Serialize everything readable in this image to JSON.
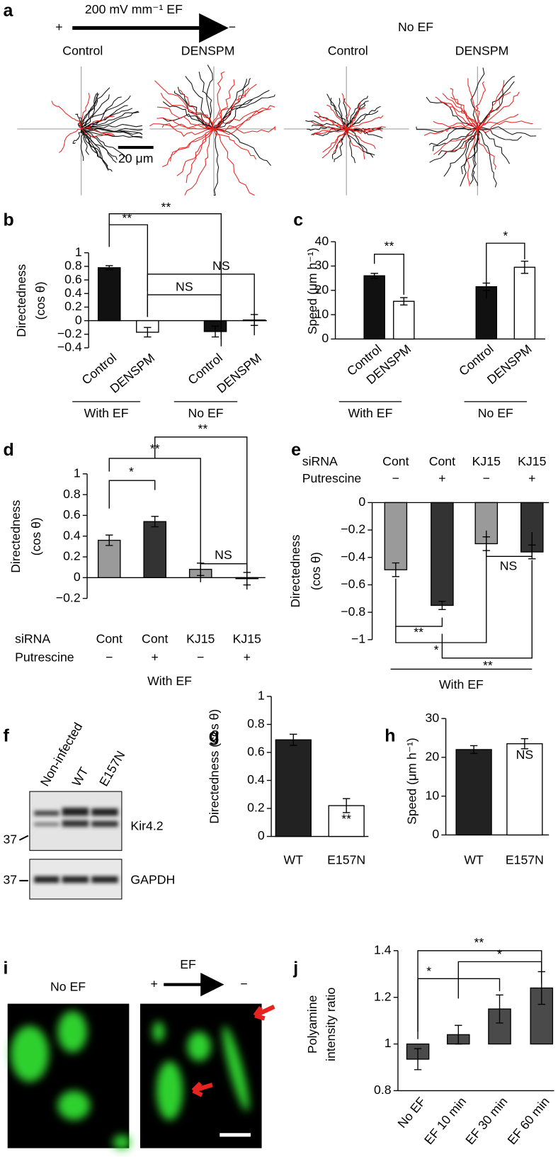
{
  "figures": {
    "a": {
      "label": "a",
      "ef_label": "200 mV mm⁻¹ EF",
      "plus": "+",
      "minus": "−",
      "no_ef": "No EF",
      "groups": [
        "Control",
        "DENSPM",
        "Control",
        "DENSPM"
      ],
      "scale": "20 μm"
    },
    "f": {
      "label": "f",
      "lanes": [
        "Non-infected",
        "WT",
        "E157N"
      ],
      "bands": [
        "Kir4.2",
        "GAPDH"
      ],
      "markers": [
        "37",
        "37"
      ]
    },
    "i": {
      "label": "i",
      "left": "No EF",
      "right": "EF",
      "plus": "+",
      "minus": "−"
    }
  },
  "chart_data": [
    {
      "type": "bar",
      "panel": "b",
      "ylabel": [
        "Directedness",
        "(cos θ)"
      ],
      "categories": [
        "Control",
        "DENSPM",
        "Control",
        "DENSPM"
      ],
      "values": [
        0.78,
        -0.17,
        -0.16,
        0.01
      ],
      "errors": [
        0.03,
        0.07,
        0.08,
        0.08
      ],
      "colors": [
        "#111111",
        "#ffffff",
        "#111111",
        "#ffffff"
      ],
      "groups": [
        "With EF",
        "No EF"
      ],
      "ylim": [
        -0.4,
        1
      ],
      "yticks": [
        {
          "value": -0.4,
          "label": "−0.4"
        },
        {
          "value": -0.2,
          "label": "−0.2"
        },
        0,
        0.2,
        0.4,
        0.6,
        0.8,
        1
      ],
      "annotations": [
        "**",
        "**",
        "NS",
        "NS"
      ]
    },
    {
      "type": "bar",
      "panel": "c",
      "ylabel": [
        "Speed (μm h⁻¹)"
      ],
      "categories": [
        "Control",
        "DENSPM",
        "Control",
        "DENSPM"
      ],
      "values": [
        26,
        15.5,
        21.5,
        29.5
      ],
      "errors": [
        1,
        1.5,
        1.5,
        2.5
      ],
      "colors": [
        "#111111",
        "#ffffff",
        "#111111",
        "#ffffff"
      ],
      "groups": [
        "With EF",
        "No EF"
      ],
      "ylim": [
        0,
        40
      ],
      "yticks": [
        0,
        10,
        20,
        30,
        40
      ],
      "annotations": [
        "**",
        "*"
      ]
    },
    {
      "type": "bar",
      "panel": "d",
      "ylabel": [
        "Directedness",
        "(cos θ)"
      ],
      "category_label": "siRNA",
      "categories": [
        "Cont",
        "Cont",
        "KJ15",
        "KJ15"
      ],
      "treatment": {
        "label": "Putrescine",
        "values": [
          "−",
          "+",
          "−",
          "+"
        ]
      },
      "values": [
        0.36,
        0.54,
        0.08,
        -0.01
      ],
      "errors": [
        0.05,
        0.05,
        0.06,
        0.06
      ],
      "colors": [
        "#9a9a9a",
        "#333333",
        "#9a9a9a",
        "#333333"
      ],
      "groups": [
        "With EF"
      ],
      "ylim": [
        -0.2,
        1
      ],
      "yticks": [
        {
          "value": -0.2,
          "label": "−0.2"
        },
        0,
        0.2,
        0.4,
        0.6,
        0.8,
        1
      ],
      "annotations": [
        "*",
        "**",
        "**",
        "NS"
      ]
    },
    {
      "type": "bar",
      "panel": "e",
      "ylabel": [
        "Directedness",
        "(cos θ)"
      ],
      "category_label": "siRNA",
      "categories": [
        "Cont",
        "Cont",
        "KJ15",
        "KJ15"
      ],
      "treatment": {
        "label": "Putrescine",
        "values": [
          "−",
          "+",
          "−",
          "+"
        ]
      },
      "values": [
        -0.49,
        -0.75,
        -0.3,
        -0.36
      ],
      "errors": [
        0.05,
        0.03,
        0.05,
        0.05
      ],
      "colors": [
        "#9a9a9a",
        "#333333",
        "#9a9a9a",
        "#333333"
      ],
      "groups": [
        "With EF"
      ],
      "ylim": [
        -1,
        0
      ],
      "yticks": [
        0,
        {
          "value": -0.2,
          "label": "−0.2"
        },
        {
          "value": -0.4,
          "label": "−0.4"
        },
        {
          "value": -0.6,
          "label": "−0.6"
        },
        {
          "value": -0.8,
          "label": "−0.8"
        },
        {
          "value": -1,
          "label": "−1"
        }
      ],
      "annotations": [
        "NS",
        "**",
        "*",
        "**"
      ]
    },
    {
      "type": "bar",
      "panel": "g",
      "ylabel": [
        "Directedness (cos θ)"
      ],
      "categories": [
        "WT",
        "E157N"
      ],
      "values": [
        0.69,
        0.22
      ],
      "errors": [
        0.04,
        0.05
      ],
      "colors": [
        "#222222",
        "#ffffff"
      ],
      "ylim": [
        0,
        1
      ],
      "yticks": [
        0,
        0.2,
        0.4,
        0.6,
        0.8,
        1
      ],
      "annotations": [
        "**"
      ]
    },
    {
      "type": "bar",
      "panel": "h",
      "ylabel": [
        "Speed (μm h⁻¹)"
      ],
      "categories": [
        "WT",
        "E157N"
      ],
      "values": [
        22,
        23.5
      ],
      "errors": [
        1,
        1.3
      ],
      "colors": [
        "#222222",
        "#ffffff"
      ],
      "ylim": [
        0,
        30
      ],
      "yticks": [
        0,
        10,
        20,
        30
      ],
      "annotations": [
        "NS"
      ]
    },
    {
      "type": "bar",
      "panel": "j",
      "ylabel": [
        "Polyamine",
        "intensity ratio"
      ],
      "categories": [
        "No EF",
        "EF 10 min",
        "EF 30 min",
        "EF 60 min"
      ],
      "values": [
        0.935,
        1.04,
        1.15,
        1.24
      ],
      "errors": [
        0.045,
        0.04,
        0.06,
        0.07
      ],
      "colors": [
        "#4a4a4a",
        "#4a4a4a",
        "#4a4a4a",
        "#4a4a4a"
      ],
      "baseline": 1,
      "ylim": [
        0.8,
        1.4
      ],
      "yticks": [
        0.8,
        1,
        1.2,
        1.4
      ],
      "annotations": [
        "**",
        "*",
        "*"
      ]
    }
  ]
}
